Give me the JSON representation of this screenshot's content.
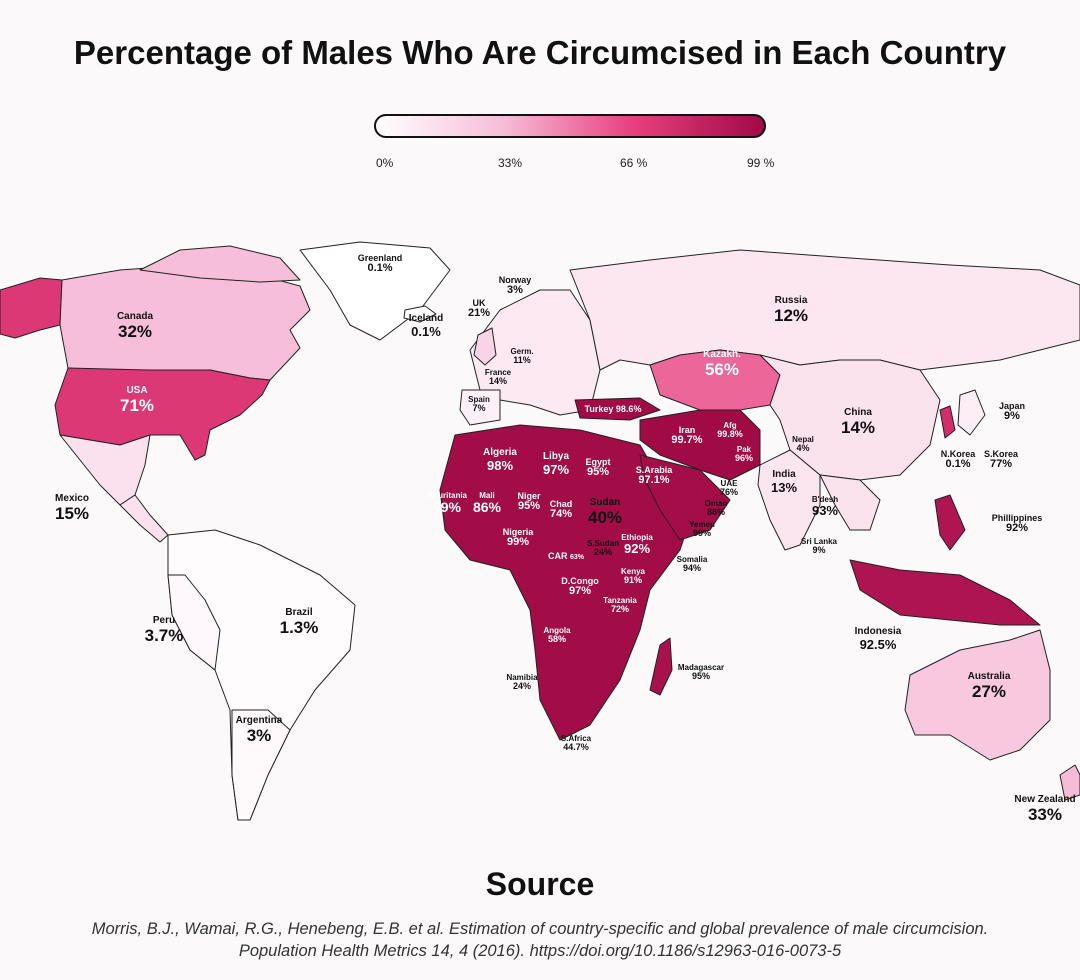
{
  "title": "Percentage of Males Who Are Circumcised in Each Country",
  "legend": {
    "ticks": [
      "0%",
      "33%",
      "66 %",
      "99 %"
    ],
    "colors": [
      "#ffffff",
      "#f6bcd7",
      "#e8407f",
      "#a00a45"
    ]
  },
  "countries": [
    {
      "key": "greenland",
      "name": "Greenland",
      "value": "0.1%",
      "pct": 0.1
    },
    {
      "key": "norway",
      "name": "Norway",
      "value": "3%",
      "pct": 3
    },
    {
      "key": "uk",
      "name": "UK",
      "value": "21%",
      "pct": 21
    },
    {
      "key": "iceland",
      "name": "Iceland",
      "value": "0.1%",
      "pct": 0.1
    },
    {
      "key": "canada",
      "name": "Canada",
      "value": "32%",
      "pct": 32
    },
    {
      "key": "usa",
      "name": "USA",
      "value": "71%",
      "pct": 71
    },
    {
      "key": "mexico",
      "name": "Mexico",
      "value": "15%",
      "pct": 15
    },
    {
      "key": "peru",
      "name": "Peru",
      "value": "3.7%",
      "pct": 3.7
    },
    {
      "key": "brazil",
      "name": "Brazil",
      "value": "1.3%",
      "pct": 1.3
    },
    {
      "key": "argentina",
      "name": "Argentina",
      "value": "3%",
      "pct": 3
    },
    {
      "key": "germany",
      "name": "Germ.",
      "value": "11%",
      "pct": 11
    },
    {
      "key": "france",
      "name": "France",
      "value": "14%",
      "pct": 14
    },
    {
      "key": "spain",
      "name": "Spain",
      "value": "7%",
      "pct": 7
    },
    {
      "key": "russia",
      "name": "Russia",
      "value": "12%",
      "pct": 12
    },
    {
      "key": "kazakhstan",
      "name": "Kazakh.",
      "value": "56%",
      "pct": 56
    },
    {
      "key": "turkey",
      "name": "Turkey",
      "value": "98.6%",
      "pct": 98.6
    },
    {
      "key": "iran",
      "name": "Iran",
      "value": "99.7%",
      "pct": 99.7
    },
    {
      "key": "afghanistan",
      "name": "Afg",
      "value": "99.8%",
      "pct": 99.8
    },
    {
      "key": "pakistan",
      "name": "Pak",
      "value": "96%",
      "pct": 96
    },
    {
      "key": "china",
      "name": "China",
      "value": "14%",
      "pct": 14
    },
    {
      "key": "japan",
      "name": "Japan",
      "value": "9%",
      "pct": 9
    },
    {
      "key": "nepal",
      "name": "Nepal",
      "value": "4%",
      "pct": 4
    },
    {
      "key": "nkorea",
      "name": "N.Korea",
      "value": "0.1%",
      "pct": 0.1
    },
    {
      "key": "skorea",
      "name": "S.Korea",
      "value": "77%",
      "pct": 77
    },
    {
      "key": "india",
      "name": "India",
      "value": "13%",
      "pct": 13
    },
    {
      "key": "bangladesh",
      "name": "B'desh",
      "value": "93%",
      "pct": 93
    },
    {
      "key": "srilanka",
      "name": "Sri Lanka",
      "value": "9%",
      "pct": 9
    },
    {
      "key": "philippines",
      "name": "Phillippines",
      "value": "92%",
      "pct": 92
    },
    {
      "key": "indonesia",
      "name": "Indonesia",
      "value": "92.5%",
      "pct": 92.5
    },
    {
      "key": "australia",
      "name": "Australia",
      "value": "27%",
      "pct": 27
    },
    {
      "key": "newzealand",
      "name": "New Zealand",
      "value": "33%",
      "pct": 33
    },
    {
      "key": "algeria",
      "name": "Algeria",
      "value": "98%",
      "pct": 98
    },
    {
      "key": "libya",
      "name": "Libya",
      "value": "97%",
      "pct": 97
    },
    {
      "key": "egypt",
      "name": "Egypt",
      "value": "95%",
      "pct": 95
    },
    {
      "key": "saudi",
      "name": "S.Arabia",
      "value": "97.1%",
      "pct": 97.1
    },
    {
      "key": "uae",
      "name": "UAE",
      "value": "76%",
      "pct": 76
    },
    {
      "key": "oman",
      "name": "Oman",
      "value": "88%",
      "pct": 88
    },
    {
      "key": "yemen",
      "name": "Yemen",
      "value": "99%",
      "pct": 99
    },
    {
      "key": "mauritania",
      "name": "Mauritania",
      "value": "99%",
      "pct": 99
    },
    {
      "key": "mali",
      "name": "Mali",
      "value": "86%",
      "pct": 86
    },
    {
      "key": "niger",
      "name": "Niger",
      "value": "95%",
      "pct": 95
    },
    {
      "key": "chad",
      "name": "Chad",
      "value": "74%",
      "pct": 74
    },
    {
      "key": "sudan",
      "name": "Sudan",
      "value": "40%",
      "pct": 40
    },
    {
      "key": "nigeria",
      "name": "Nigeria",
      "value": "99%",
      "pct": 99
    },
    {
      "key": "car",
      "name": "CAR",
      "value": "63%",
      "pct": 63
    },
    {
      "key": "ssudan",
      "name": "S.Sudan",
      "value": "24%",
      "pct": 24
    },
    {
      "key": "ethiopia",
      "name": "Ethiopia",
      "value": "92%",
      "pct": 92
    },
    {
      "key": "somalia",
      "name": "Somalia",
      "value": "94%",
      "pct": 94
    },
    {
      "key": "kenya",
      "name": "Kenya",
      "value": "91%",
      "pct": 91
    },
    {
      "key": "dcongo",
      "name": "D.Congo",
      "value": "97%",
      "pct": 97
    },
    {
      "key": "tanzania",
      "name": "Tanzania",
      "value": "72%",
      "pct": 72
    },
    {
      "key": "angola",
      "name": "Angola",
      "value": "58%",
      "pct": 58
    },
    {
      "key": "namibia",
      "name": "Namibia",
      "value": "24%",
      "pct": 24
    },
    {
      "key": "safrica",
      "name": "S.Africa",
      "value": "44.7%",
      "pct": 44.7
    },
    {
      "key": "madagascar",
      "name": "Madagascar",
      "value": "95%",
      "pct": 95
    }
  ],
  "source": {
    "heading": "Source",
    "line1": "Morris, B.J., Wamai, R.G., Henebeng, E.B. et al. Estimation of country-specific and global prevalence of male circumcision.",
    "line2": "Population Health Metrics 14, 4 (2016). https://doi.org/10.1186/s12963-016-0073-5"
  }
}
